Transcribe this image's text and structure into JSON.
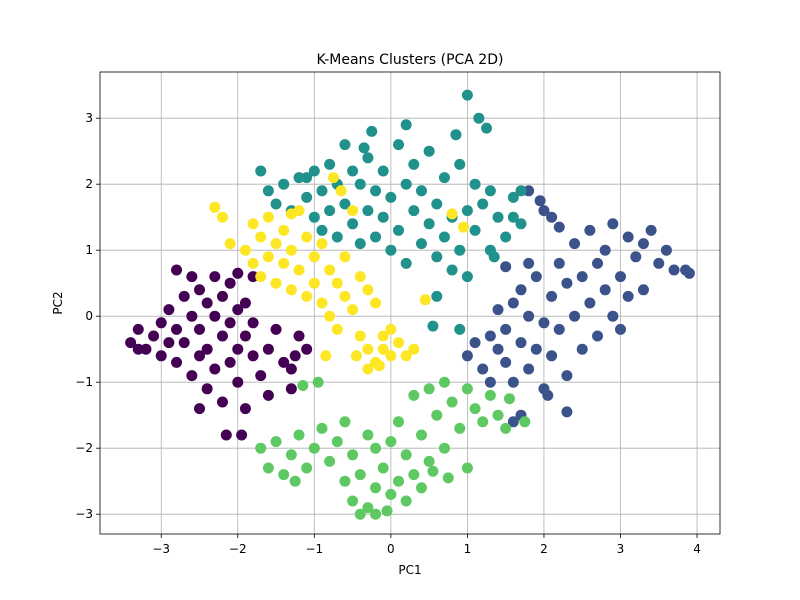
{
  "chart_data": {
    "type": "scatter",
    "title": "K-Means Clusters (PCA 2D)",
    "xlabel": "PC1",
    "ylabel": "PC2",
    "xlim": [
      -3.8,
      4.3
    ],
    "ylim": [
      -3.3,
      3.7
    ],
    "grid": true,
    "x_ticks": [
      -3,
      -2,
      -1,
      0,
      1,
      2,
      3,
      4
    ],
    "y_ticks": [
      -3,
      -2,
      -1,
      0,
      1,
      2,
      3
    ],
    "x_tick_labels": [
      "−3",
      "−2",
      "−1",
      "0",
      "1",
      "2",
      "3",
      "4"
    ],
    "y_tick_labels": [
      "−3",
      "−2",
      "−1",
      "0",
      "1",
      "2",
      "3"
    ],
    "series": [
      {
        "color": "#440154",
        "points": [
          [
            -3.4,
            -0.4
          ],
          [
            -3.3,
            -0.2
          ],
          [
            -3.2,
            -0.5
          ],
          [
            -3.1,
            -0.3
          ],
          [
            -3.0,
            -0.1
          ],
          [
            -3.0,
            -0.6
          ],
          [
            -2.9,
            -0.4
          ],
          [
            -2.9,
            0.1
          ],
          [
            -2.8,
            -0.2
          ],
          [
            -2.8,
            -0.7
          ],
          [
            -2.7,
            0.3
          ],
          [
            -2.7,
            -0.4
          ],
          [
            -2.6,
            0.0
          ],
          [
            -2.6,
            -0.9
          ],
          [
            -2.5,
            0.4
          ],
          [
            -2.5,
            -0.2
          ],
          [
            -2.5,
            -0.6
          ],
          [
            -2.4,
            0.2
          ],
          [
            -2.4,
            -0.5
          ],
          [
            -2.4,
            -1.1
          ],
          [
            -2.3,
            0.6
          ],
          [
            -2.3,
            0.0
          ],
          [
            -2.3,
            -0.8
          ],
          [
            -2.2,
            0.3
          ],
          [
            -2.2,
            -0.3
          ],
          [
            -2.2,
            -1.3
          ],
          [
            -2.1,
            0.5
          ],
          [
            -2.1,
            -0.1
          ],
          [
            -2.1,
            -0.7
          ],
          [
            -2.0,
            0.1
          ],
          [
            -2.0,
            -0.5
          ],
          [
            -2.0,
            -1.0
          ],
          [
            -1.9,
            0.2
          ],
          [
            -1.9,
            -0.3
          ],
          [
            -1.9,
            -1.4
          ],
          [
            -1.8,
            -0.1
          ],
          [
            -1.8,
            -0.6
          ],
          [
            -1.7,
            -0.9
          ],
          [
            -1.6,
            -0.5
          ],
          [
            -1.6,
            -1.2
          ],
          [
            -1.5,
            -0.2
          ],
          [
            -1.4,
            -0.7
          ],
          [
            -1.3,
            -1.1
          ],
          [
            -1.2,
            -0.3
          ],
          [
            -1.1,
            -0.5
          ],
          [
            -2.6,
            0.6
          ],
          [
            -2.8,
            0.7
          ],
          [
            -3.3,
            -0.5
          ],
          [
            -2.5,
            -1.4
          ],
          [
            -2.15,
            -1.8
          ],
          [
            -1.95,
            -1.8
          ],
          [
            -1.3,
            -0.8
          ],
          [
            -1.8,
            0.6
          ],
          [
            -2.0,
            0.65
          ],
          [
            -1.25,
            -0.6
          ]
        ]
      },
      {
        "color": "#3b528b",
        "points": [
          [
            1.0,
            -0.6
          ],
          [
            1.1,
            -0.4
          ],
          [
            1.2,
            -0.8
          ],
          [
            1.3,
            -0.3
          ],
          [
            1.3,
            -1.0
          ],
          [
            1.4,
            -0.5
          ],
          [
            1.4,
            0.1
          ],
          [
            1.5,
            -0.7
          ],
          [
            1.5,
            -0.2
          ],
          [
            1.6,
            0.2
          ],
          [
            1.6,
            -1.0
          ],
          [
            1.7,
            -0.4
          ],
          [
            1.7,
            0.4
          ],
          [
            1.8,
            -0.8
          ],
          [
            1.8,
            0.0
          ],
          [
            1.9,
            -0.5
          ],
          [
            1.9,
            0.6
          ],
          [
            2.0,
            -0.1
          ],
          [
            2.0,
            -1.1
          ],
          [
            2.1,
            0.3
          ],
          [
            2.1,
            -0.6
          ],
          [
            2.2,
            0.8
          ],
          [
            2.2,
            -0.2
          ],
          [
            2.3,
            0.5
          ],
          [
            2.3,
            -0.9
          ],
          [
            2.4,
            1.1
          ],
          [
            2.4,
            0.0
          ],
          [
            2.5,
            0.6
          ],
          [
            2.5,
            -0.5
          ],
          [
            2.6,
            1.3
          ],
          [
            2.6,
            0.2
          ],
          [
            2.7,
            0.8
          ],
          [
            2.7,
            -0.3
          ],
          [
            2.8,
            1.0
          ],
          [
            2.8,
            0.4
          ],
          [
            2.9,
            1.4
          ],
          [
            2.9,
            0.0
          ],
          [
            3.0,
            0.6
          ],
          [
            3.0,
            -0.2
          ],
          [
            3.1,
            1.2
          ],
          [
            3.1,
            0.3
          ],
          [
            3.2,
            0.9
          ],
          [
            3.3,
            1.1
          ],
          [
            3.3,
            0.4
          ],
          [
            3.4,
            1.3
          ],
          [
            3.5,
            0.8
          ],
          [
            3.6,
            1.0
          ],
          [
            3.7,
            0.7
          ],
          [
            3.85,
            0.7
          ],
          [
            3.9,
            0.65
          ],
          [
            1.8,
            1.9
          ],
          [
            1.95,
            1.75
          ],
          [
            2.1,
            1.5
          ],
          [
            2.2,
            1.35
          ],
          [
            2.3,
            -1.45
          ],
          [
            1.7,
            -1.5
          ],
          [
            1.6,
            -1.6
          ],
          [
            2.05,
            -1.2
          ],
          [
            2.0,
            1.6
          ],
          [
            1.5,
            0.75
          ],
          [
            1.8,
            0.8
          ]
        ]
      },
      {
        "color": "#21918c",
        "points": [
          [
            -1.7,
            2.2
          ],
          [
            -1.6,
            1.9
          ],
          [
            -1.5,
            1.7
          ],
          [
            -1.4,
            2.0
          ],
          [
            -1.3,
            1.6
          ],
          [
            -1.2,
            2.1
          ],
          [
            -1.1,
            1.8
          ],
          [
            -1.0,
            2.2
          ],
          [
            -1.0,
            1.5
          ],
          [
            -0.9,
            1.9
          ],
          [
            -0.9,
            1.3
          ],
          [
            -0.8,
            2.3
          ],
          [
            -0.8,
            1.6
          ],
          [
            -0.7,
            2.0
          ],
          [
            -0.7,
            1.2
          ],
          [
            -0.6,
            2.6
          ],
          [
            -0.6,
            1.7
          ],
          [
            -0.5,
            2.2
          ],
          [
            -0.5,
            1.4
          ],
          [
            -0.4,
            2.0
          ],
          [
            -0.4,
            1.1
          ],
          [
            -0.3,
            2.4
          ],
          [
            -0.3,
            1.6
          ],
          [
            -0.2,
            1.9
          ],
          [
            -0.2,
            1.2
          ],
          [
            -0.1,
            2.2
          ],
          [
            -0.1,
            1.5
          ],
          [
            0.0,
            1.8
          ],
          [
            0.0,
            1.0
          ],
          [
            0.1,
            2.6
          ],
          [
            0.1,
            1.3
          ],
          [
            0.2,
            2.0
          ],
          [
            0.2,
            0.8
          ],
          [
            0.3,
            1.6
          ],
          [
            0.3,
            2.3
          ],
          [
            0.4,
            1.1
          ],
          [
            0.4,
            1.9
          ],
          [
            0.5,
            1.4
          ],
          [
            0.5,
            2.5
          ],
          [
            0.6,
            0.9
          ],
          [
            0.6,
            1.7
          ],
          [
            0.7,
            2.1
          ],
          [
            0.7,
            1.2
          ],
          [
            0.8,
            0.7
          ],
          [
            0.8,
            1.5
          ],
          [
            0.9,
            2.3
          ],
          [
            0.9,
            1.0
          ],
          [
            1.0,
            1.6
          ],
          [
            1.0,
            0.6
          ],
          [
            1.1,
            2.0
          ],
          [
            1.1,
            1.3
          ],
          [
            1.2,
            1.7
          ],
          [
            1.3,
            1.0
          ],
          [
            1.4,
            1.5
          ],
          [
            1.5,
            1.2
          ],
          [
            1.6,
            1.8
          ],
          [
            1.7,
            1.4
          ],
          [
            1.0,
            3.35
          ],
          [
            1.15,
            3.0
          ],
          [
            1.25,
            2.85
          ],
          [
            -0.25,
            2.8
          ],
          [
            -0.35,
            2.55
          ],
          [
            0.2,
            2.9
          ],
          [
            0.85,
            2.75
          ],
          [
            1.3,
            1.9
          ],
          [
            -1.1,
            2.1
          ],
          [
            0.6,
            0.3
          ],
          [
            0.9,
            -0.2
          ],
          [
            1.35,
            0.9
          ],
          [
            0.55,
            -0.15
          ],
          [
            1.7,
            1.9
          ],
          [
            1.6,
            1.5
          ]
        ]
      },
      {
        "color": "#5ec962",
        "points": [
          [
            -1.7,
            -2.0
          ],
          [
            -1.6,
            -2.3
          ],
          [
            -1.5,
            -1.9
          ],
          [
            -1.4,
            -2.4
          ],
          [
            -1.3,
            -2.1
          ],
          [
            -1.2,
            -1.8
          ],
          [
            -1.1,
            -2.3
          ],
          [
            -1.0,
            -2.0
          ],
          [
            -0.9,
            -1.7
          ],
          [
            -0.8,
            -2.2
          ],
          [
            -0.7,
            -1.9
          ],
          [
            -0.6,
            -2.5
          ],
          [
            -0.6,
            -1.6
          ],
          [
            -0.5,
            -2.8
          ],
          [
            -0.5,
            -2.1
          ],
          [
            -0.4,
            -2.4
          ],
          [
            -0.3,
            -2.9
          ],
          [
            -0.3,
            -1.8
          ],
          [
            -0.2,
            -2.6
          ],
          [
            -0.2,
            -2.0
          ],
          [
            -0.1,
            -2.3
          ],
          [
            0.0,
            -2.7
          ],
          [
            0.0,
            -1.9
          ],
          [
            0.1,
            -2.5
          ],
          [
            0.1,
            -1.6
          ],
          [
            0.2,
            -2.8
          ],
          [
            0.2,
            -2.1
          ],
          [
            0.3,
            -2.4
          ],
          [
            0.3,
            -1.2
          ],
          [
            0.4,
            -1.8
          ],
          [
            0.4,
            -2.6
          ],
          [
            0.5,
            -1.1
          ],
          [
            0.5,
            -2.2
          ],
          [
            0.6,
            -1.5
          ],
          [
            0.7,
            -1.0
          ],
          [
            0.7,
            -2.0
          ],
          [
            0.8,
            -1.3
          ],
          [
            0.9,
            -1.7
          ],
          [
            1.0,
            -1.1
          ],
          [
            1.0,
            -2.3
          ],
          [
            1.1,
            -1.4
          ],
          [
            1.2,
            -1.6
          ],
          [
            1.3,
            -1.2
          ],
          [
            1.4,
            -1.5
          ],
          [
            1.5,
            -1.7
          ],
          [
            -1.15,
            -1.05
          ],
          [
            -0.95,
            -1.0
          ],
          [
            -0.4,
            -3.0
          ],
          [
            -0.2,
            -3.0
          ],
          [
            -0.05,
            -2.95
          ],
          [
            0.75,
            -2.45
          ],
          [
            0.55,
            -2.35
          ],
          [
            -1.25,
            -2.5
          ],
          [
            1.75,
            -1.6
          ],
          [
            1.55,
            -1.25
          ]
        ]
      },
      {
        "color": "#fde725",
        "points": [
          [
            -2.3,
            1.65
          ],
          [
            -2.2,
            1.5
          ],
          [
            -2.1,
            1.1
          ],
          [
            -1.9,
            1.0
          ],
          [
            -1.8,
            1.4
          ],
          [
            -1.8,
            0.8
          ],
          [
            -1.7,
            1.2
          ],
          [
            -1.7,
            0.6
          ],
          [
            -1.6,
            1.5
          ],
          [
            -1.6,
            0.9
          ],
          [
            -1.5,
            1.1
          ],
          [
            -1.5,
            0.5
          ],
          [
            -1.4,
            1.3
          ],
          [
            -1.4,
            0.8
          ],
          [
            -1.3,
            1.0
          ],
          [
            -1.3,
            0.4
          ],
          [
            -1.2,
            1.6
          ],
          [
            -1.2,
            0.7
          ],
          [
            -1.1,
            1.2
          ],
          [
            -1.1,
            0.3
          ],
          [
            -1.0,
            0.9
          ],
          [
            -1.0,
            0.5
          ],
          [
            -0.9,
            1.1
          ],
          [
            -0.9,
            0.2
          ],
          [
            -0.8,
            0.7
          ],
          [
            -0.8,
            0.0
          ],
          [
            -0.7,
            0.5
          ],
          [
            -0.7,
            -0.2
          ],
          [
            -0.6,
            0.9
          ],
          [
            -0.6,
            0.3
          ],
          [
            -0.5,
            1.6
          ],
          [
            -0.5,
            0.1
          ],
          [
            -0.4,
            0.6
          ],
          [
            -0.4,
            -0.3
          ],
          [
            -0.3,
            0.4
          ],
          [
            -0.3,
            -0.5
          ],
          [
            -0.2,
            0.2
          ],
          [
            -0.2,
            -0.7
          ],
          [
            -0.1,
            -0.3
          ],
          [
            -0.1,
            -0.5
          ],
          [
            0.0,
            -0.2
          ],
          [
            0.0,
            -0.6
          ],
          [
            0.1,
            -0.4
          ],
          [
            0.2,
            -0.6
          ],
          [
            0.3,
            -0.5
          ],
          [
            -0.45,
            -0.6
          ],
          [
            -0.3,
            -0.8
          ],
          [
            -0.15,
            -0.75
          ],
          [
            0.45,
            0.25
          ],
          [
            0.8,
            1.55
          ],
          [
            0.95,
            1.35
          ],
          [
            -0.65,
            1.9
          ],
          [
            -0.75,
            2.1
          ],
          [
            -1.3,
            1.55
          ],
          [
            -0.85,
            -0.6
          ]
        ]
      }
    ]
  }
}
